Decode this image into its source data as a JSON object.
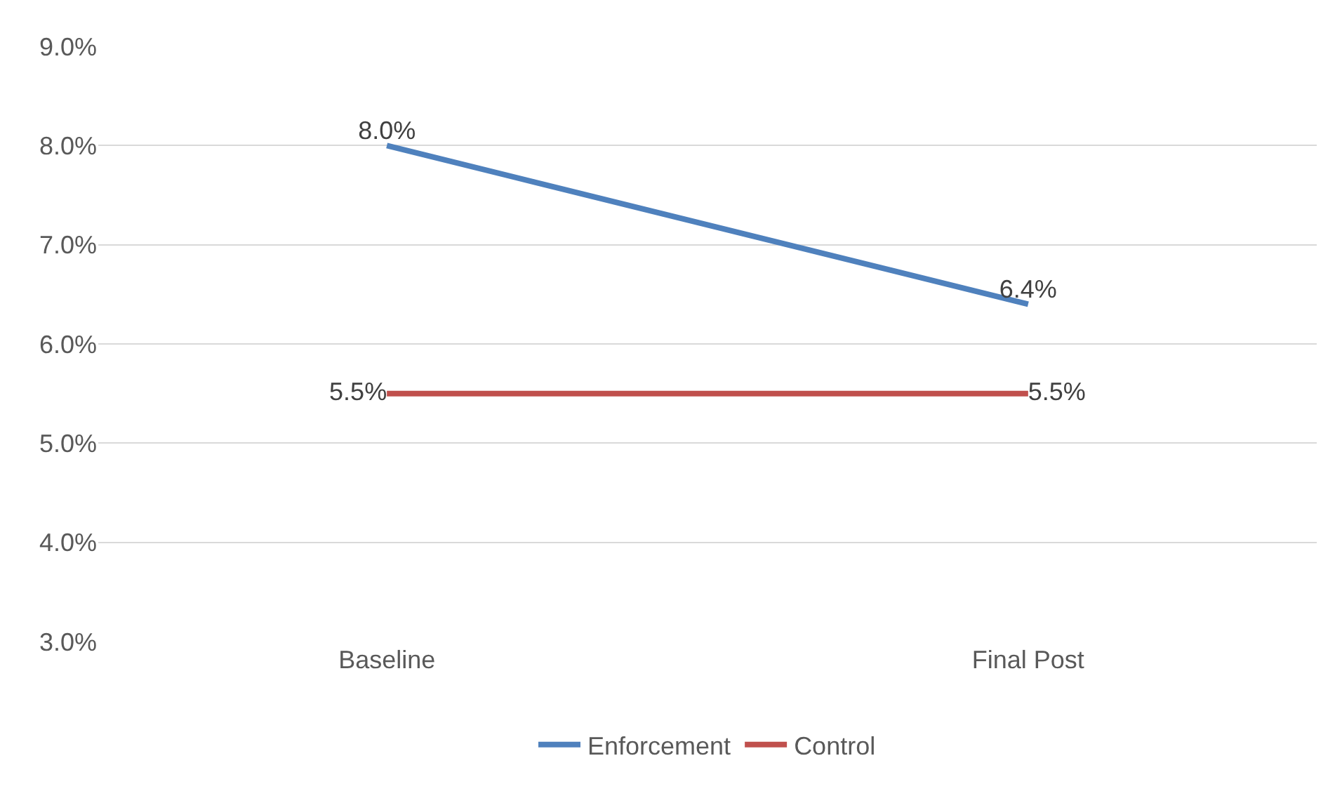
{
  "chart_data": {
    "type": "line",
    "categories": [
      "Baseline",
      "Final Post"
    ],
    "series": [
      {
        "name": "Enforcement",
        "color": "#4f81bd",
        "values": [
          8.0,
          6.4
        ],
        "value_labels": [
          "8.0%",
          "6.4%"
        ]
      },
      {
        "name": "Control",
        "color": "#c0504d",
        "values": [
          5.5,
          5.5
        ],
        "value_labels": [
          "5.5%",
          "5.5%"
        ]
      }
    ],
    "ylim": [
      3,
      9
    ],
    "yticks": [
      {
        "value": 3,
        "label": "3.0%"
      },
      {
        "value": 4,
        "label": "4.0%"
      },
      {
        "value": 5,
        "label": "5.0%"
      },
      {
        "value": 6,
        "label": "6.0%"
      },
      {
        "value": 7,
        "label": "7.0%"
      },
      {
        "value": 8,
        "label": "8.0%"
      },
      {
        "value": 9,
        "label": "9.0%"
      }
    ],
    "grid": "y",
    "legend": "bottom",
    "marker": "none",
    "line_style": "solid"
  }
}
